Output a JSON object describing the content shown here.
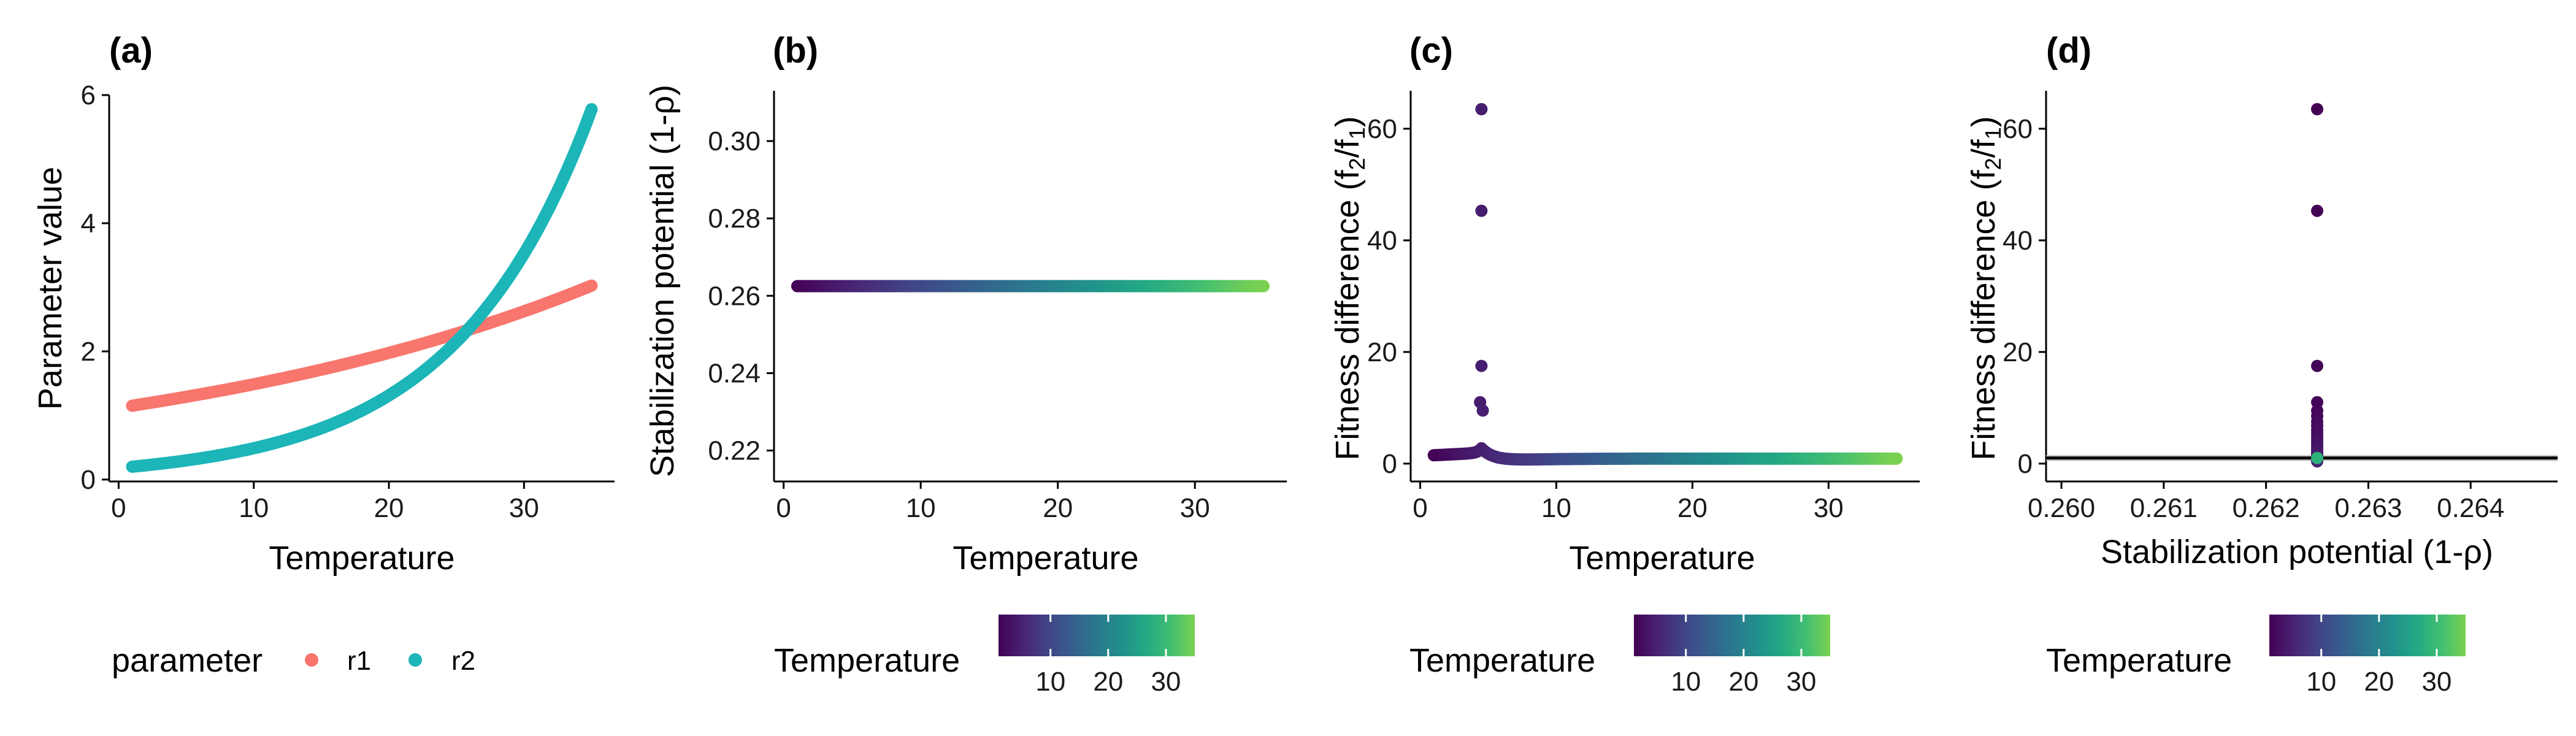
{
  "chart_data": [
    {
      "panel": "(a)",
      "type": "line",
      "xlabel": "Temperature",
      "ylabel": "Parameter value",
      "xlim": [
        -0.7,
        36.7
      ],
      "ylim": [
        -0.03,
        6.0
      ],
      "xticks": [
        0,
        10,
        20,
        30
      ],
      "yticks": [
        0,
        2,
        4,
        6
      ],
      "legend": {
        "title": "parameter",
        "position": "bottom"
      },
      "series": [
        {
          "name": "r1",
          "color": "#F8766D",
          "form": "exp",
          "a": 1.12,
          "b": 0.0284,
          "x": [
            1,
            35
          ]
        },
        {
          "name": "r2",
          "color": "#1CB5B8",
          "form": "exp",
          "a": 0.182,
          "b": 0.0988,
          "x": [
            1,
            35
          ]
        }
      ]
    },
    {
      "panel": "(b)",
      "type": "scatter",
      "xlabel": "Temperature",
      "ylabel": "Stabilization potential (1-ρ)",
      "xlim": [
        -0.7,
        36.7
      ],
      "ylim": [
        0.212,
        0.313
      ],
      "xticks": [
        0,
        10,
        20,
        30
      ],
      "yticks": [
        0.22,
        0.24,
        0.26,
        0.28,
        0.3
      ],
      "points": {
        "x_from": 1,
        "x_to": 35,
        "y": 0.2625
      },
      "color_legend": {
        "title": "Temperature",
        "range": [
          1,
          35
        ],
        "breaks": [
          10,
          20,
          30
        ],
        "palette": "viridis"
      }
    },
    {
      "panel": "(c)",
      "type": "scatter",
      "xlabel": "Temperature",
      "ylabel_main": "Fitness difference (f",
      "ylabel_sub1": "2",
      "ylabel_mid": "/f",
      "ylabel_sub2": "1",
      "ylabel_end": ")",
      "xlim": [
        -0.7,
        36.7
      ],
      "ylim": [
        -3.2,
        66.8
      ],
      "xticks": [
        0,
        10,
        20,
        30
      ],
      "yticks": [
        0,
        20,
        40,
        60
      ],
      "outliers": [
        {
          "x": 4.5,
          "y": 63.5
        },
        {
          "x": 4.5,
          "y": 45.3
        },
        {
          "x": 4.5,
          "y": 17.5
        },
        {
          "x": 4.4,
          "y": 11.0
        },
        {
          "x": 4.6,
          "y": 9.5
        }
      ],
      "color_legend": {
        "title": "Temperature",
        "range": [
          1,
          35
        ],
        "breaks": [
          10,
          20,
          30
        ],
        "palette": "viridis"
      }
    },
    {
      "panel": "(d)",
      "type": "scatter",
      "xlabel": "Stabilization potential (1-ρ)",
      "ylabel_main": "Fitness difference (f",
      "ylabel_sub1": "2",
      "ylabel_mid": "/f",
      "ylabel_sub2": "1",
      "ylabel_end": ")",
      "xlim": [
        0.25985,
        0.26485
      ],
      "ylim": [
        -3.2,
        66.8
      ],
      "xticks": [
        0.26,
        0.261,
        0.262,
        0.263,
        0.264
      ],
      "xtick_labels": [
        "0.260",
        "0.261",
        "0.262",
        "0.263",
        "0.264"
      ],
      "yticks": [
        0,
        20,
        40,
        60
      ],
      "x_value": 0.2625,
      "points_y": [
        63.5,
        45.3,
        17.5,
        11.0,
        9.5,
        8.5,
        7.5,
        6.8,
        6.0,
        5.4,
        4.8,
        4.3,
        3.8,
        3.3,
        2.9,
        2.5,
        2.1,
        1.8,
        1.6,
        1.4,
        1.2,
        1.0,
        0.8,
        0.6,
        0.5,
        0.4
      ],
      "reference_line": {
        "y": 1.0,
        "color": "#000000"
      },
      "band": {
        "ymin": 0.45,
        "ymax": 1.55,
        "color": "#bdbdbd"
      },
      "color_legend": {
        "title": "Temperature",
        "range": [
          1,
          35
        ],
        "breaks": [
          10,
          20,
          30
        ],
        "palette": "viridis"
      }
    }
  ]
}
